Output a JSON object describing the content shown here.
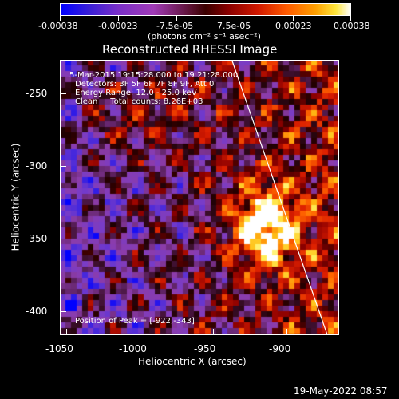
{
  "colorbar": {
    "tick_labels": [
      "-0.00038",
      "-0.00023",
      "-7.5e-05",
      "7.5e-05",
      "0.00023",
      "0.00038"
    ],
    "unit_label": "(photons cm⁻² s⁻¹ asec⁻²)"
  },
  "plot": {
    "title": "Reconstructed RHESSI Image",
    "xlabel": "Heliocentric X (arcsec)",
    "ylabel": "Heliocentric Y (arcsec)",
    "x_ticks": [
      "-1050",
      "-1000",
      "-950",
      "-900"
    ],
    "y_ticks": [
      "-250",
      "-300",
      "-350",
      "-400"
    ]
  },
  "info": {
    "time_range": "5-Mar-2015 19:15:28.000 to 19:21:28.000",
    "detectors": "Detectors: 3F 5F 6F 7F 8F 9F, Att 0",
    "energy_range": "Energy Range: 12.0 - 25.0 keV",
    "clean_counts": "Clean     Total counts: 8.26E+03",
    "peak_position": "Position of Peak = [-922,-343]"
  },
  "footer": {
    "timestamp": "19-May-2022 08:57"
  },
  "chart_data": {
    "type": "heatmap",
    "title": "Reconstructed RHESSI Image",
    "xlabel": "Heliocentric X (arcsec)",
    "ylabel": "Heliocentric Y (arcsec)",
    "xlim": [
      -1060,
      -870
    ],
    "ylim": [
      -420,
      -230
    ],
    "x_ticks": [
      -1050,
      -1000,
      -950,
      -900
    ],
    "y_ticks": [
      -250,
      -300,
      -350,
      -400
    ],
    "colorbar_range": [
      -0.00038,
      0.00038
    ],
    "colorbar_unit": "photons cm^-2 s^-1 asec^-2",
    "colormap": "blue-purple-black-red-orange-yellow-white",
    "peak_position_arcsec": [
      -922,
      -343
    ],
    "limb_line": [
      [
        -943,
        -230
      ],
      [
        -878,
        -420
      ]
    ]
  }
}
